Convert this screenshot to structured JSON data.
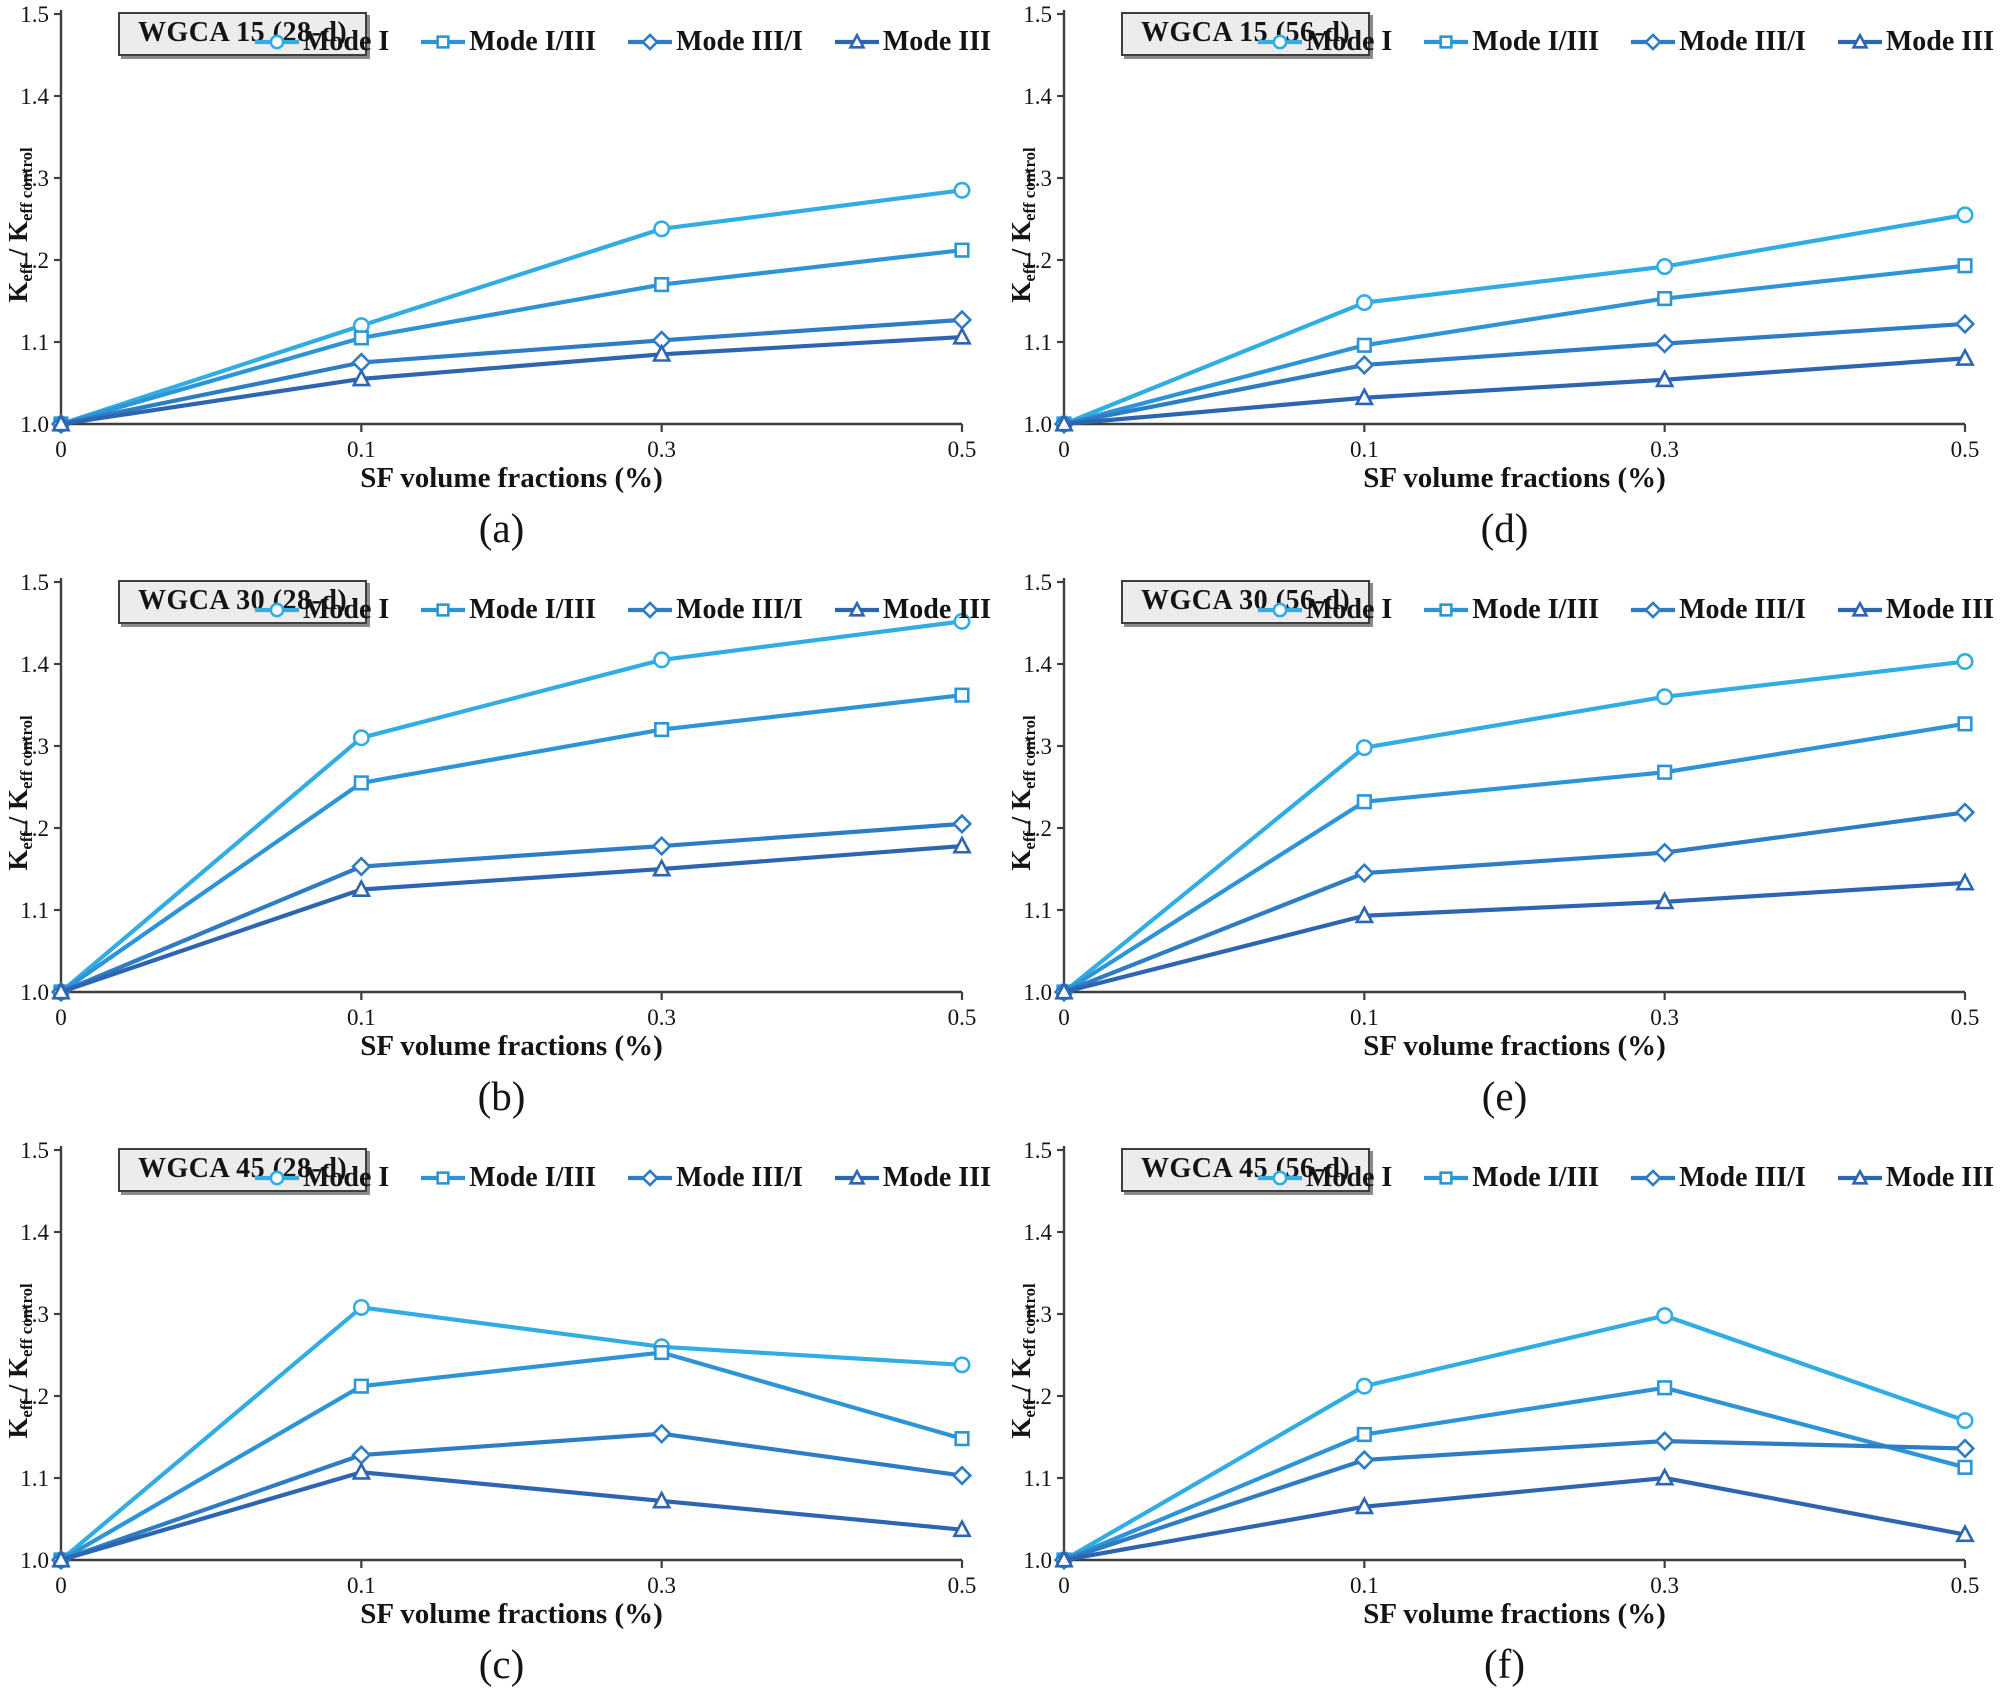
{
  "figure": {
    "x_label": "SF volume fractions (%)",
    "y_label": {
      "base1": "K",
      "sub1": "eff",
      "sep": " / ",
      "base2": "K",
      "sub2": "eff control"
    },
    "x_tick_labels": [
      "0",
      "0.1",
      "0.3",
      "0.5"
    ],
    "y_tick_labels": [
      "1.0",
      "1.1",
      "1.2",
      "1.3",
      "1.4",
      "1.5"
    ],
    "axis_color": "#3f3f3f",
    "title_box_bg": "#ececec",
    "series_meta": [
      {
        "name": "Mode I",
        "marker": "circle",
        "color": "#31ade4"
      },
      {
        "name": "Mode I/III",
        "marker": "square",
        "color": "#2d95d7"
      },
      {
        "name": "Mode III/I",
        "marker": "diamond",
        "color": "#2d7cc4"
      },
      {
        "name": "Mode III",
        "marker": "triangle",
        "color": "#2e65b0"
      }
    ]
  },
  "chart_data": [
    {
      "type": "line",
      "panel_label": "(a)",
      "title": "WGCA 15 (28-d)",
      "x": [
        0,
        0.1,
        0.3,
        0.5
      ],
      "x_axis": "categorical-even-spacing",
      "xlabel": "SF volume fractions (%)",
      "ylabel": "Keff / Keff control",
      "ylim": [
        1.0,
        1.5
      ],
      "legend_position": "top",
      "grid": false,
      "series": [
        {
          "name": "Mode I",
          "values": [
            1.0,
            1.12,
            1.238,
            1.285
          ]
        },
        {
          "name": "Mode I/III",
          "values": [
            1.0,
            1.105,
            1.17,
            1.212
          ]
        },
        {
          "name": "Mode III/I",
          "values": [
            1.0,
            1.075,
            1.102,
            1.127
          ]
        },
        {
          "name": "Mode III",
          "values": [
            1.0,
            1.055,
            1.085,
            1.106
          ]
        }
      ]
    },
    {
      "type": "line",
      "panel_label": "(d)",
      "title": "WGCA 15 (56-d)",
      "x": [
        0,
        0.1,
        0.3,
        0.5
      ],
      "x_axis": "categorical-even-spacing",
      "xlabel": "SF volume fractions (%)",
      "ylabel": "Keff / Keff control",
      "ylim": [
        1.0,
        1.5
      ],
      "legend_position": "top",
      "grid": false,
      "series": [
        {
          "name": "Mode I",
          "values": [
            1.0,
            1.148,
            1.192,
            1.255
          ]
        },
        {
          "name": "Mode I/III",
          "values": [
            1.0,
            1.096,
            1.153,
            1.193
          ]
        },
        {
          "name": "Mode III/I",
          "values": [
            1.0,
            1.072,
            1.098,
            1.122
          ]
        },
        {
          "name": "Mode III",
          "values": [
            1.0,
            1.032,
            1.054,
            1.08
          ]
        }
      ]
    },
    {
      "type": "line",
      "panel_label": "(b)",
      "title": "WGCA 30 (28-d)",
      "x": [
        0,
        0.1,
        0.3,
        0.5
      ],
      "x_axis": "categorical-even-spacing",
      "xlabel": "SF volume fractions (%)",
      "ylabel": "Keff / Keff control",
      "ylim": [
        1.0,
        1.5
      ],
      "legend_position": "top",
      "grid": false,
      "series": [
        {
          "name": "Mode I",
          "values": [
            1.0,
            1.31,
            1.405,
            1.452
          ]
        },
        {
          "name": "Mode I/III",
          "values": [
            1.0,
            1.255,
            1.32,
            1.362
          ]
        },
        {
          "name": "Mode III/I",
          "values": [
            1.0,
            1.153,
            1.178,
            1.205
          ]
        },
        {
          "name": "Mode III",
          "values": [
            1.0,
            1.125,
            1.15,
            1.178
          ]
        }
      ]
    },
    {
      "type": "line",
      "panel_label": "(e)",
      "title": "WGCA 30 (56-d)",
      "x": [
        0,
        0.1,
        0.3,
        0.5
      ],
      "x_axis": "categorical-even-spacing",
      "xlabel": "SF volume fractions (%)",
      "ylabel": "Keff / Keff control",
      "ylim": [
        1.0,
        1.5
      ],
      "legend_position": "top",
      "grid": false,
      "series": [
        {
          "name": "Mode I",
          "values": [
            1.0,
            1.298,
            1.36,
            1.403
          ]
        },
        {
          "name": "Mode I/III",
          "values": [
            1.0,
            1.232,
            1.268,
            1.327
          ]
        },
        {
          "name": "Mode III/I",
          "values": [
            1.0,
            1.145,
            1.17,
            1.219
          ]
        },
        {
          "name": "Mode III",
          "values": [
            1.0,
            1.093,
            1.11,
            1.133
          ]
        }
      ]
    },
    {
      "type": "line",
      "panel_label": "(c)",
      "title": "WGCA 45 (28-d)",
      "x": [
        0,
        0.1,
        0.3,
        0.5
      ],
      "x_axis": "categorical-even-spacing",
      "xlabel": "SF volume fractions (%)",
      "ylabel": "Keff / Keff control",
      "ylim": [
        1.0,
        1.5
      ],
      "legend_position": "top",
      "grid": false,
      "series": [
        {
          "name": "Mode I",
          "values": [
            1.0,
            1.308,
            1.26,
            1.238
          ]
        },
        {
          "name": "Mode I/III",
          "values": [
            1.0,
            1.212,
            1.253,
            1.148
          ]
        },
        {
          "name": "Mode III/I",
          "values": [
            1.0,
            1.128,
            1.154,
            1.103
          ]
        },
        {
          "name": "Mode III",
          "values": [
            1.0,
            1.107,
            1.072,
            1.037
          ]
        }
      ]
    },
    {
      "type": "line",
      "panel_label": "(f)",
      "title": "WGCA 45 (56-d)",
      "x": [
        0,
        0.1,
        0.3,
        0.5
      ],
      "x_axis": "categorical-even-spacing",
      "xlabel": "SF volume fractions (%)",
      "ylabel": "Keff / Keff control",
      "ylim": [
        1.0,
        1.5
      ],
      "legend_position": "top",
      "grid": false,
      "series": [
        {
          "name": "Mode I",
          "values": [
            1.0,
            1.212,
            1.298,
            1.17
          ]
        },
        {
          "name": "Mode I/III",
          "values": [
            1.0,
            1.153,
            1.21,
            1.113
          ]
        },
        {
          "name": "Mode III/I",
          "values": [
            1.0,
            1.122,
            1.145,
            1.136
          ]
        },
        {
          "name": "Mode III",
          "values": [
            1.0,
            1.065,
            1.1,
            1.031
          ]
        }
      ]
    }
  ]
}
